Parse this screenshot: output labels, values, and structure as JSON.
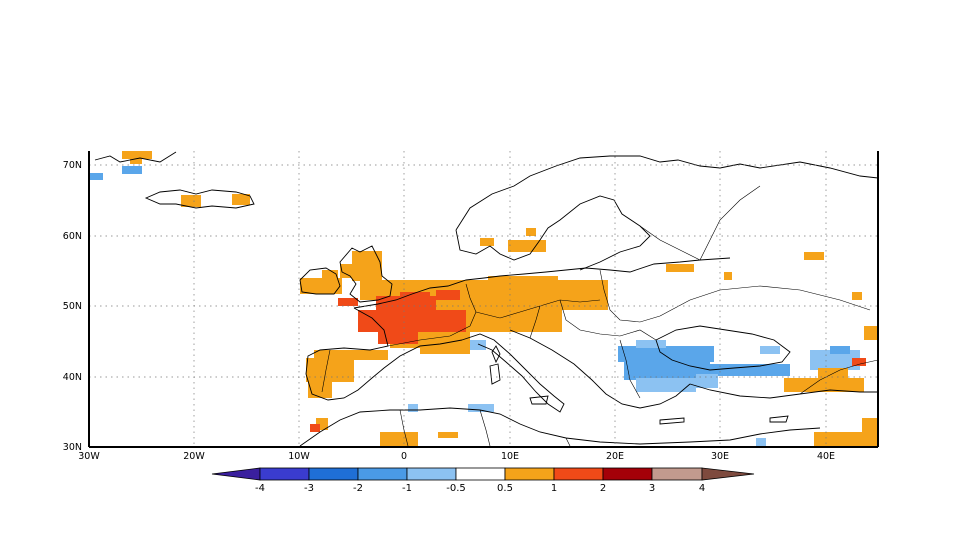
{
  "map": {
    "lon_range": [
      -30,
      45
    ],
    "lat_range": [
      30,
      72
    ],
    "lat_labels": [
      "30N",
      "40N",
      "50N",
      "60N",
      "70N"
    ],
    "lon_labels": [
      "30W",
      "20W",
      "10W",
      "0",
      "10E",
      "20E",
      "30E",
      "40E"
    ]
  },
  "legend": {
    "labels": [
      "-4",
      "-3",
      "-2",
      "-1",
      "-0.5",
      "0.5",
      "1",
      "2",
      "3",
      "4"
    ],
    "colors": [
      "#3a1f9e",
      "#3a3ccf",
      "#1f6fd6",
      "#4a9ae6",
      "#8cc2f2",
      "#ffffff",
      "#f5a31a",
      "#f04a18",
      "#a40008",
      "#c29a8e",
      "#7e4a3e"
    ]
  },
  "anomaly_colors": {
    "orange": "#f5a31a",
    "red": "#f04a18",
    "blue": "#5aa6ea",
    "light_blue": "#8cc2f2"
  }
}
